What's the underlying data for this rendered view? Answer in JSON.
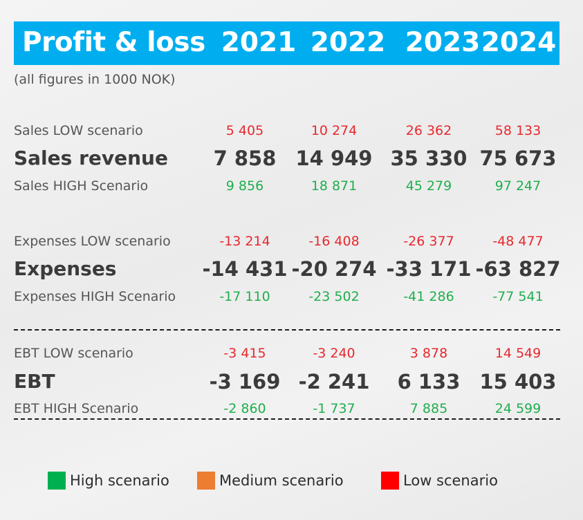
{
  "header": {
    "title": "Profit & loss",
    "years": [
      "2021",
      "2022",
      "2023",
      "2024"
    ]
  },
  "subtitle": "(all figures in 1000 NOK)",
  "colors": {
    "header_bg": "#00aeef",
    "low": "#e8282e",
    "high": "#1fae4d",
    "legend_high": "#00b050",
    "legend_medium": "#ed7d31",
    "legend_low": "#ff0000"
  },
  "groups": [
    {
      "low": {
        "label": "Sales LOW scenario",
        "values": [
          "5 405",
          "10 274",
          "26 362",
          "58 133"
        ]
      },
      "main": {
        "label": "Sales revenue",
        "values": [
          "7 858",
          "14 949",
          "35 330",
          "75 673"
        ]
      },
      "high": {
        "label": "Sales HIGH Scenario",
        "values": [
          "9 856",
          "18 871",
          "45 279",
          "97 247"
        ]
      }
    },
    {
      "low": {
        "label": "Expenses LOW scenario",
        "values": [
          "-13 214",
          "-16 408",
          "-26 377",
          "-48 477"
        ]
      },
      "main": {
        "label": "Expenses",
        "values": [
          "-14 431",
          "-20 274",
          "-33 171",
          "-63 827"
        ]
      },
      "high": {
        "label": "Expenses HIGH Scenario",
        "values": [
          "-17 110",
          "-23 502",
          "-41 286",
          "-77 541"
        ]
      }
    },
    {
      "low": {
        "label": "EBT LOW scenario",
        "values": [
          "-3 415",
          "-3 240",
          "3 878",
          "14 549"
        ]
      },
      "main": {
        "label": "EBT",
        "values": [
          "-3 169",
          "-2 241",
          "6 133",
          "15 403"
        ]
      },
      "high": {
        "label": "EBT HIGH Scenario",
        "values": [
          "-2 860",
          "-1 737",
          "7 885",
          "24 599"
        ]
      }
    }
  ],
  "legend": [
    {
      "label": "High scenario",
      "color": "#00b050"
    },
    {
      "label": "Medium scenario",
      "color": "#ed7d31"
    },
    {
      "label": "Low scenario",
      "color": "#ff0000"
    }
  ]
}
